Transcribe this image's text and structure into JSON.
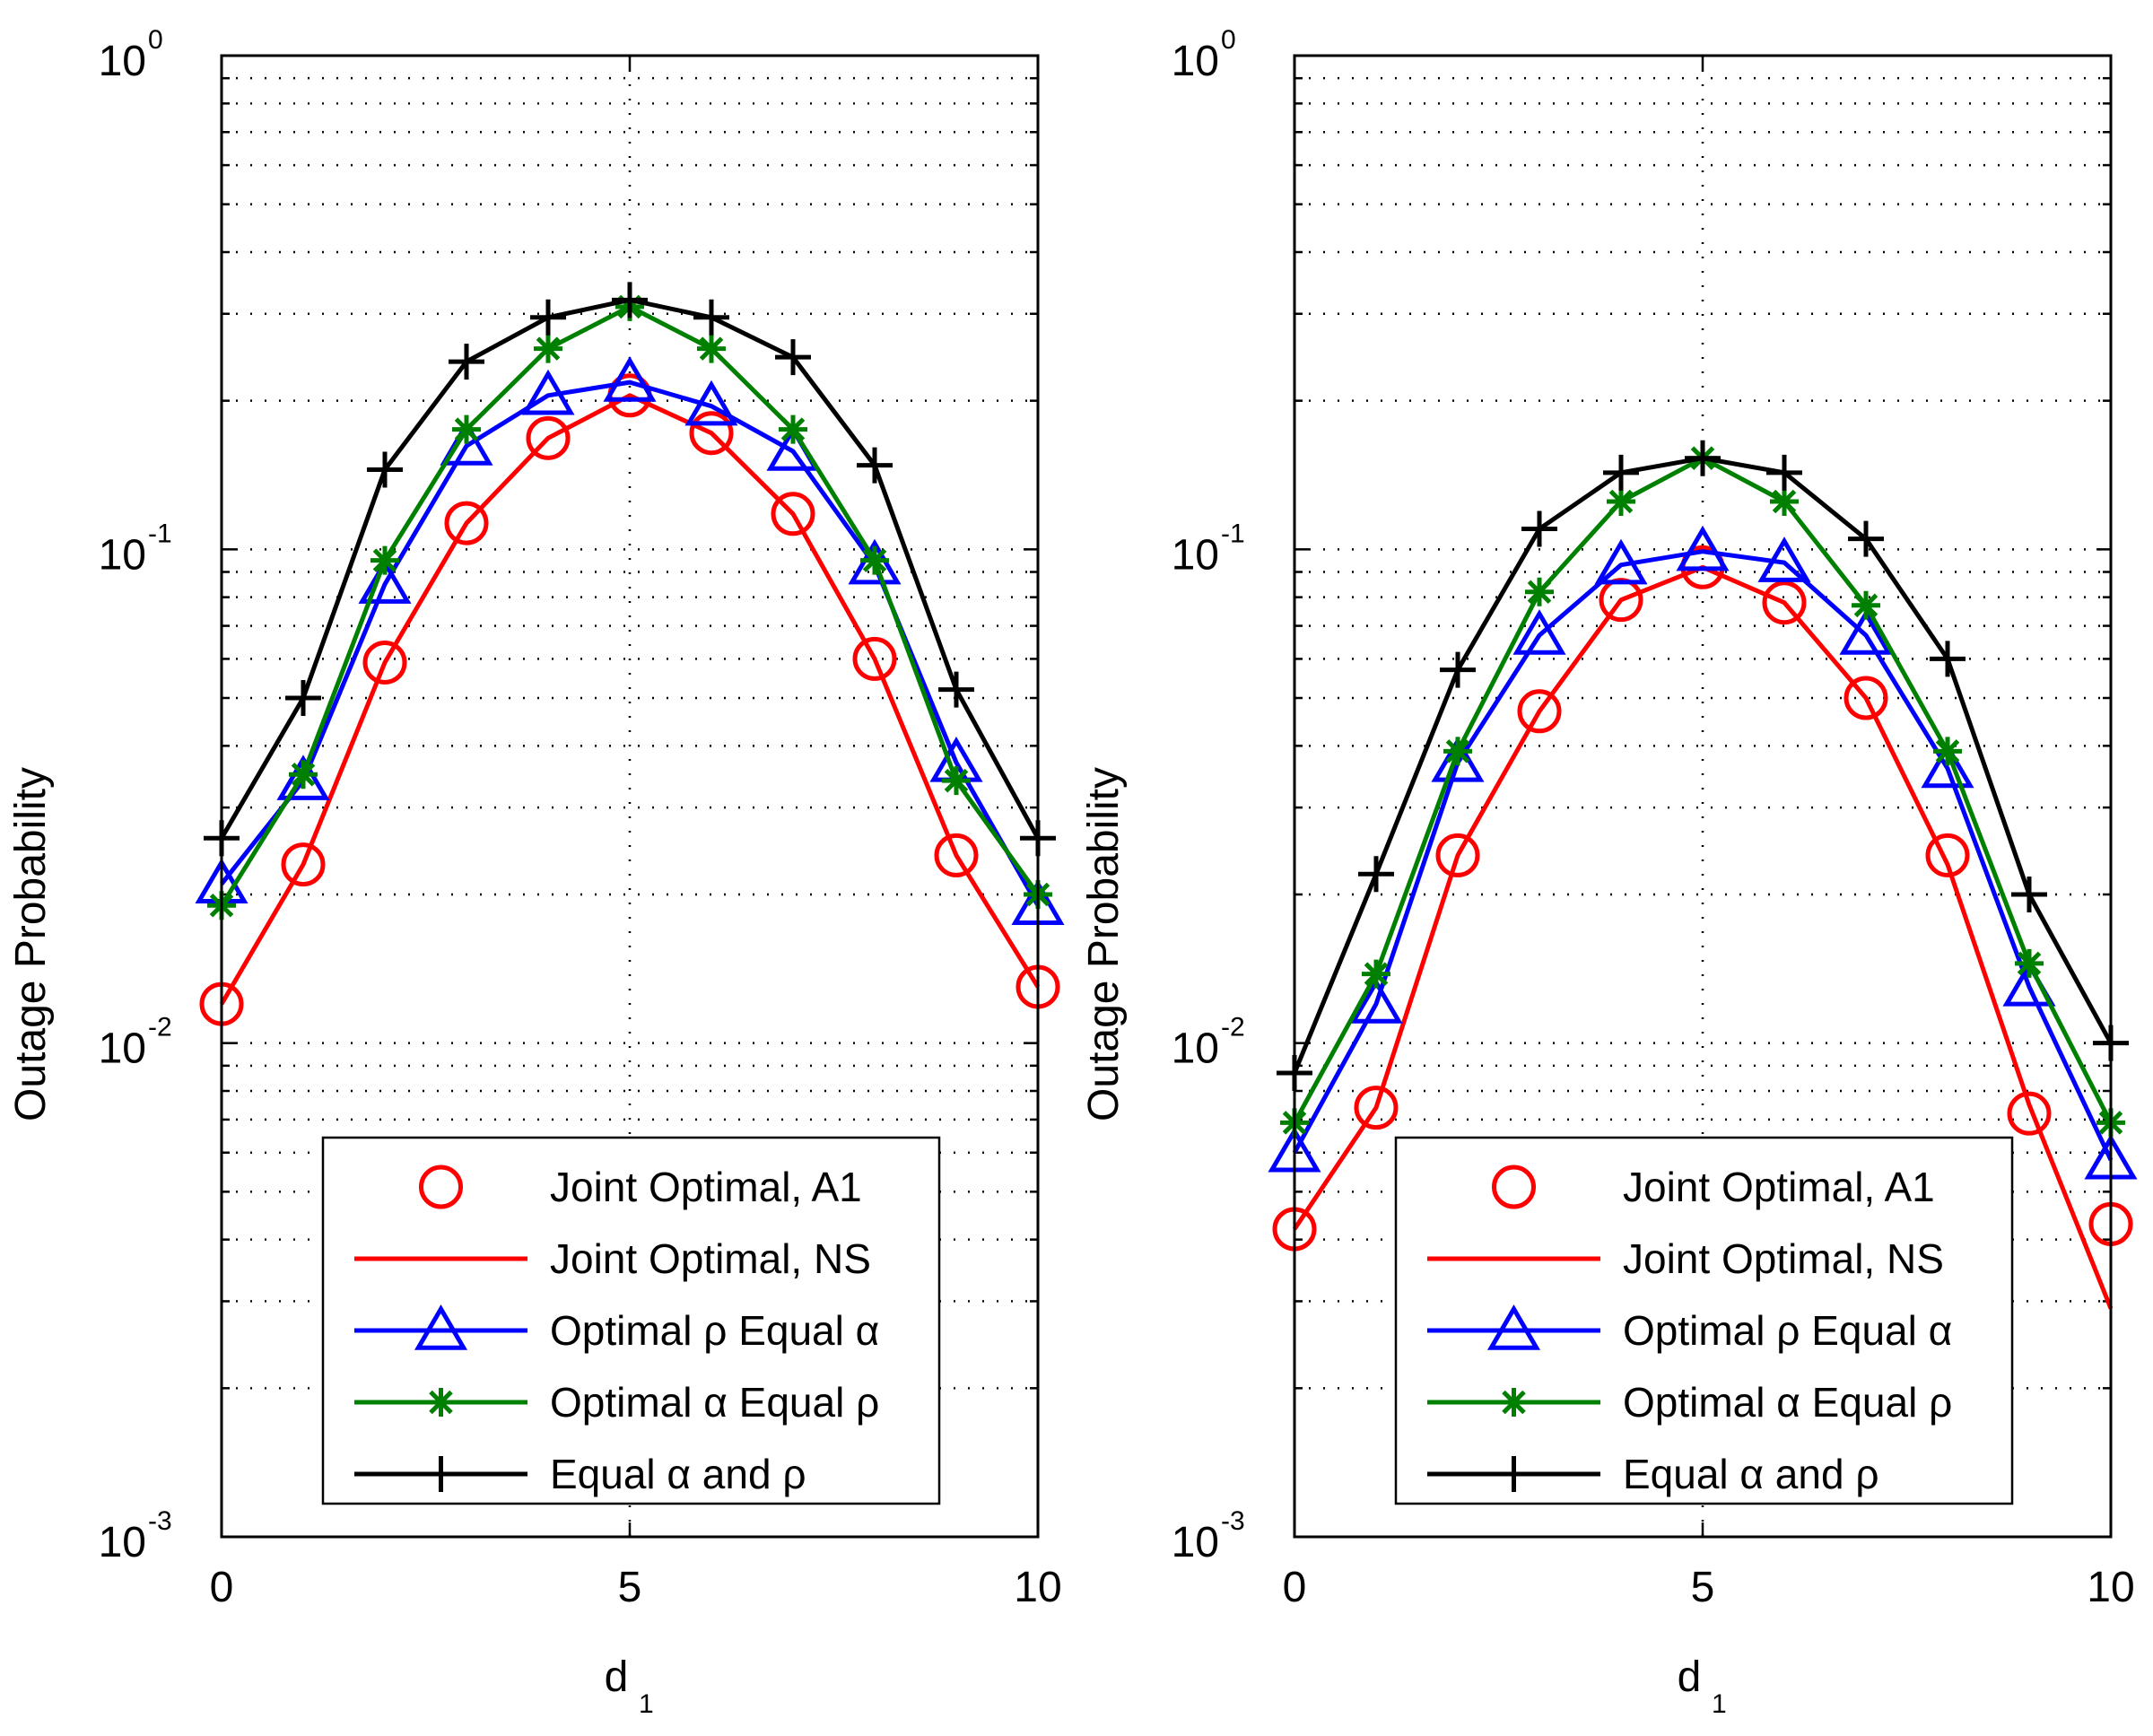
{
  "colors": {
    "red": "#ff0000",
    "blue": "#0000ff",
    "green": "#008000",
    "black": "#000000"
  },
  "chart_data": [
    {
      "type": "line",
      "yscale": "log",
      "xlabel": "d",
      "xlabel_sub": "1",
      "ylabel": "Outage Probability",
      "xlim": [
        0,
        10
      ],
      "ylim": [
        0.001,
        1
      ],
      "xticks": [
        0,
        5,
        10
      ],
      "xtick_labels": [
        "0",
        "5",
        "10"
      ],
      "ytick_base": "10",
      "ytick_exponents": [
        "-3",
        "-2",
        "-1",
        "0"
      ],
      "grid": true,
      "legend_position": "bottom-center",
      "series": [
        {
          "name": "Joint Optimal, A1",
          "color_key": "red",
          "marker": "circle",
          "line": false,
          "x": [
            0,
            1,
            2,
            3,
            4,
            5,
            6,
            7,
            8,
            9,
            10
          ],
          "y": [
            0.012,
            0.023,
            0.059,
            0.113,
            0.168,
            0.205,
            0.172,
            0.118,
            0.06,
            0.024,
            0.013
          ]
        },
        {
          "name": "Joint Optimal, NS",
          "color_key": "red",
          "marker": "none",
          "line": true,
          "x": [
            0,
            1,
            2,
            3,
            4,
            5,
            6,
            7,
            8,
            9,
            10
          ],
          "y": [
            0.012,
            0.023,
            0.059,
            0.113,
            0.168,
            0.205,
            0.172,
            0.118,
            0.06,
            0.024,
            0.013
          ]
        },
        {
          "name": "Optimal ρ Equal α",
          "color_key": "blue",
          "marker": "triangle",
          "line": true,
          "x": [
            0,
            1,
            2,
            3,
            4,
            5,
            6,
            7,
            8,
            9,
            10
          ],
          "y": [
            0.021,
            0.034,
            0.085,
            0.162,
            0.205,
            0.218,
            0.195,
            0.158,
            0.093,
            0.037,
            0.019
          ]
        },
        {
          "name": "Optimal α Equal ρ",
          "color_key": "green",
          "marker": "star",
          "line": true,
          "x": [
            0,
            1,
            2,
            3,
            4,
            5,
            6,
            7,
            8,
            9,
            10
          ],
          "y": [
            0.019,
            0.035,
            0.095,
            0.175,
            0.255,
            0.31,
            0.255,
            0.175,
            0.095,
            0.034,
            0.02
          ]
        },
        {
          "name": "Equal α and ρ",
          "color_key": "black",
          "marker": "plus",
          "line": true,
          "x": [
            0,
            1,
            2,
            3,
            4,
            5,
            6,
            7,
            8,
            9,
            10
          ],
          "y": [
            0.026,
            0.05,
            0.145,
            0.24,
            0.295,
            0.32,
            0.295,
            0.245,
            0.148,
            0.052,
            0.026
          ]
        }
      ]
    },
    {
      "type": "line",
      "yscale": "log",
      "xlabel": "d",
      "xlabel_sub": "1",
      "ylabel": "Outage Probability",
      "xlim": [
        0,
        10
      ],
      "ylim": [
        0.001,
        1
      ],
      "xticks": [
        0,
        5,
        10
      ],
      "xtick_labels": [
        "0",
        "5",
        "10"
      ],
      "ytick_base": "10",
      "ytick_exponents": [
        "-3",
        "-2",
        "-1",
        "0"
      ],
      "grid": true,
      "legend_position": "bottom-center",
      "series": [
        {
          "name": "Joint Optimal, A1",
          "color_key": "red",
          "marker": "circle",
          "line": false,
          "x": [
            0,
            1,
            2,
            3,
            4,
            5,
            6,
            7,
            8,
            9,
            10
          ],
          "y": [
            0.0042,
            0.0074,
            0.024,
            0.047,
            0.079,
            0.092,
            0.078,
            0.05,
            0.024,
            0.0072,
            0.0043
          ]
        },
        {
          "name": "Joint Optimal, NS",
          "color_key": "red",
          "marker": "none",
          "line": true,
          "x": [
            0,
            1,
            2,
            3,
            4,
            5,
            6,
            7,
            8,
            9,
            10
          ],
          "y": [
            0.0042,
            0.0074,
            0.024,
            0.047,
            0.079,
            0.092,
            0.078,
            0.05,
            0.023,
            0.0075,
            0.0029
          ]
        },
        {
          "name": "Optimal ρ Equal α",
          "color_key": "blue",
          "marker": "triangle",
          "line": true,
          "x": [
            0,
            1,
            2,
            3,
            4,
            5,
            6,
            7,
            8,
            9,
            10
          ],
          "y": [
            0.006,
            0.012,
            0.037,
            0.067,
            0.093,
            0.099,
            0.094,
            0.067,
            0.036,
            0.013,
            0.0058
          ]
        },
        {
          "name": "Optimal α Equal ρ",
          "color_key": "green",
          "marker": "star",
          "line": true,
          "x": [
            0,
            1,
            2,
            3,
            4,
            5,
            6,
            7,
            8,
            9,
            10
          ],
          "y": [
            0.0069,
            0.0138,
            0.039,
            0.082,
            0.125,
            0.153,
            0.125,
            0.077,
            0.039,
            0.0145,
            0.0069
          ]
        },
        {
          "name": "Equal α and ρ",
          "color_key": "black",
          "marker": "plus",
          "line": true,
          "x": [
            0,
            1,
            2,
            3,
            4,
            5,
            6,
            7,
            8,
            9,
            10
          ],
          "y": [
            0.0087,
            0.022,
            0.057,
            0.11,
            0.143,
            0.153,
            0.143,
            0.105,
            0.06,
            0.02,
            0.01
          ]
        }
      ]
    }
  ]
}
